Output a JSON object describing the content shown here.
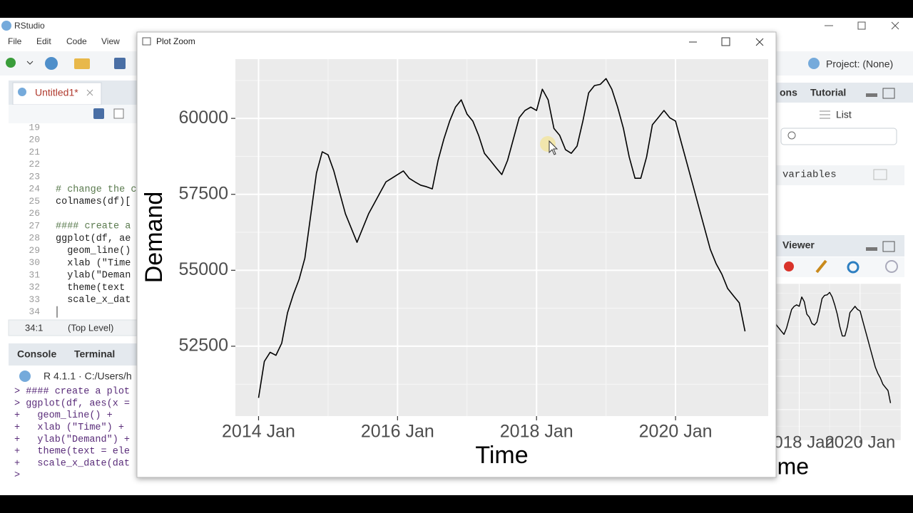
{
  "app": {
    "title": "RStudio",
    "menu": [
      "File",
      "Edit",
      "Code",
      "View"
    ],
    "project": "Project: (None)"
  },
  "editor": {
    "tab": "Untitled1*",
    "line_numbers": [
      19,
      20,
      21,
      22,
      23,
      24,
      25,
      26,
      27,
      28,
      29,
      30,
      31,
      32,
      33,
      34
    ],
    "code": [
      {
        "line": 24,
        "text": "# change the c"
      },
      {
        "line": 25,
        "text": "colnames(df)["
      },
      {
        "line": 27,
        "text": "#### create a"
      },
      {
        "line": 28,
        "text": "ggplot(df, ae"
      },
      {
        "line": 29,
        "text": "  geom_line()"
      },
      {
        "line": 30,
        "text": "  xlab (\"Time"
      },
      {
        "line": 31,
        "text": "  ylab(\"Deman"
      },
      {
        "line": 32,
        "text": "  theme(text "
      },
      {
        "line": 33,
        "text": "  scale_x_dat"
      }
    ],
    "status": {
      "position": "34:1",
      "scope": "(Top Level)"
    }
  },
  "console": {
    "tabs": [
      "Console",
      "Terminal"
    ],
    "header": "R 4.1.1 · C:/Users/h",
    "lines": [
      "> #### create a plot",
      "> ggplot(df, aes(x =",
      "+   geom_line() +",
      "+   xlab (\"Time\") +",
      "+   ylab(\"Demand\") +",
      "+   theme(text = ele",
      "+   scale_x_date(dat",
      ">"
    ]
  },
  "right_panes": {
    "tabs": [
      "ons",
      "Tutorial"
    ],
    "list": "List",
    "environment": "variables",
    "viewer": "Viewer"
  },
  "plot_window": {
    "title": "Plot Zoom"
  },
  "chart_data": {
    "type": "line",
    "x_label": "Time",
    "y_label": "Demand",
    "color": "#000000",
    "panel_color": "#ebebeb",
    "grid": true,
    "x": [
      "2014-01",
      "2014-02",
      "2014-03",
      "2014-04",
      "2014-05",
      "2014-06",
      "2014-07",
      "2014-08",
      "2014-09",
      "2014-10",
      "2014-11",
      "2014-12",
      "2015-01",
      "2015-02",
      "2015-03",
      "2015-04",
      "2015-05",
      "2015-06",
      "2015-07",
      "2015-08",
      "2015-09",
      "2015-10",
      "2015-11",
      "2015-12",
      "2016-01",
      "2016-02",
      "2016-03",
      "2016-04",
      "2016-05",
      "2016-06",
      "2016-07",
      "2016-08",
      "2016-09",
      "2016-10",
      "2016-11",
      "2016-12",
      "2017-01",
      "2017-02",
      "2017-03",
      "2017-04",
      "2017-05",
      "2017-06",
      "2017-07",
      "2017-08",
      "2017-09",
      "2017-10",
      "2017-11",
      "2017-12",
      "2018-01",
      "2018-02",
      "2018-03",
      "2018-04",
      "2018-05",
      "2018-06",
      "2018-07",
      "2018-08",
      "2018-09",
      "2018-10",
      "2018-11",
      "2018-12",
      "2019-01",
      "2019-02",
      "2019-03",
      "2019-04",
      "2019-05",
      "2019-06",
      "2019-07",
      "2019-08",
      "2019-09",
      "2019-10",
      "2019-11",
      "2019-12",
      "2020-01",
      "2020-02",
      "2020-03",
      "2020-04",
      "2020-05",
      "2020-06",
      "2020-07",
      "2020-08",
      "2020-09",
      "2020-10",
      "2020-11",
      "2020-12",
      "2021-01"
    ],
    "values": [
      50800,
      52000,
      52300,
      52200,
      52600,
      53600,
      54200,
      54700,
      55400,
      56800,
      58200,
      58900,
      58800,
      58270,
      57560,
      56860,
      56390,
      55920,
      56390,
      56860,
      57210,
      57560,
      57910,
      58030,
      58150,
      58270,
      58030,
      57910,
      57800,
      57750,
      57680,
      58620,
      59320,
      59910,
      60370,
      60610,
      60140,
      59910,
      59440,
      58850,
      58620,
      58380,
      58150,
      58620,
      59320,
      60020,
      60260,
      60370,
      60260,
      60960,
      60610,
      59670,
      59440,
      58970,
      58850,
      59090,
      59910,
      60840,
      61080,
      61120,
      61310,
      60960,
      60370,
      59670,
      58730,
      58030,
      58030,
      58730,
      59790,
      60020,
      60260,
      60020,
      59910,
      59200,
      58500,
      57800,
      57090,
      56390,
      55690,
      55220,
      54870,
      54400,
      54160,
      53930,
      52990
    ],
    "xlim": [
      "2013-09",
      "2021-05"
    ],
    "xticks": [
      {
        "value": "2014-01",
        "label": "2014 Jan"
      },
      {
        "value": "2016-01",
        "label": "2016 Jan"
      },
      {
        "value": "2018-01",
        "label": "2018 Jan"
      },
      {
        "value": "2020-01",
        "label": "2020 Jan"
      }
    ],
    "ylim": [
      50200,
      61950
    ],
    "yticks": [
      52500,
      55000,
      57500,
      60000
    ]
  }
}
